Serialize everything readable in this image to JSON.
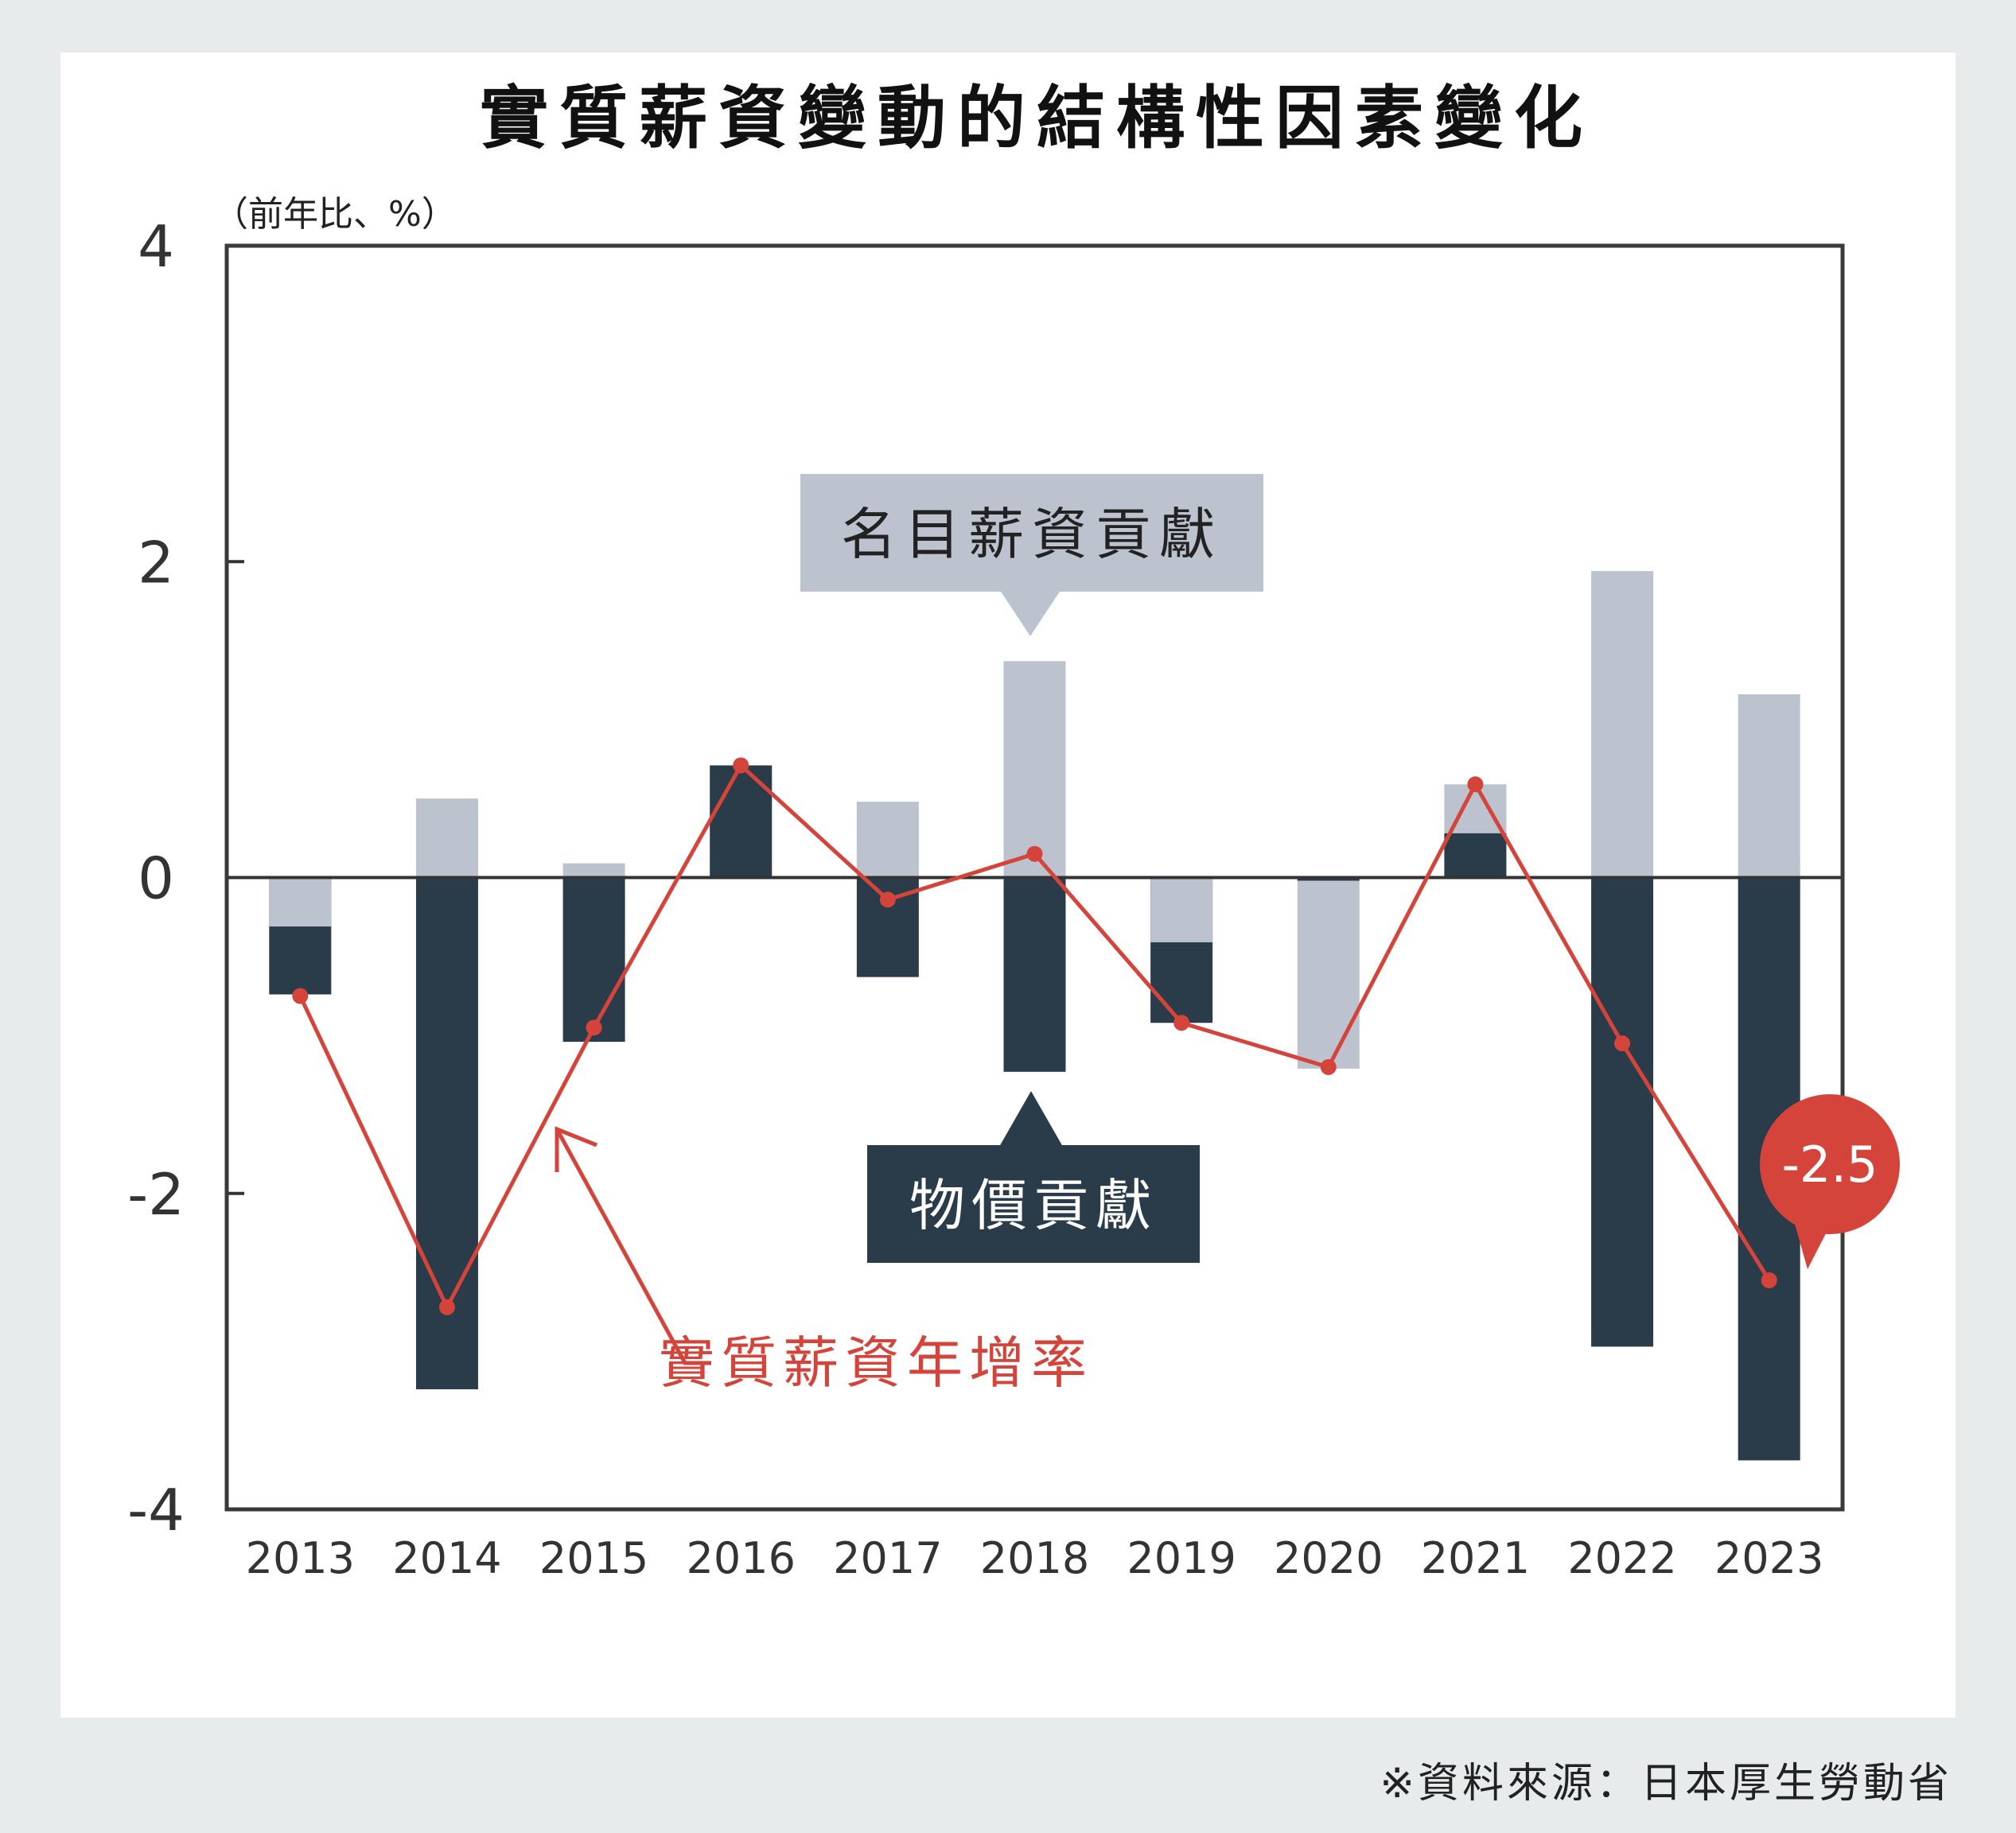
{
  "source_note": "※資料來源：日本厚生勞動省",
  "chart_data": {
    "type": "bar",
    "title": "實質薪資變動的結構性因素變化",
    "ylabel": "（前年比、%）",
    "ylim": [
      -4,
      4
    ],
    "yticks": [
      "4",
      "2",
      "0",
      "-2",
      "-4"
    ],
    "ytick_values": [
      4,
      2,
      0,
      -2,
      -4
    ],
    "categories": [
      "2013",
      "2014",
      "2015",
      "2016",
      "2017",
      "2018",
      "2019",
      "2020",
      "2021",
      "2022",
      "2023"
    ],
    "grid": false,
    "legend": "inline callouts",
    "series": [
      {
        "name": "名目薪資貢獻",
        "kind": "bar",
        "color": "#bcc3cf",
        "values": [
          -0.31,
          0.5,
          0.09,
          0.71,
          0.48,
          1.37,
          -0.41,
          -1.21,
          0.59,
          1.94,
          1.16
        ]
      },
      {
        "name": "物價貢獻",
        "kind": "bar",
        "color": "#2a3b4a",
        "values": [
          -0.74,
          -3.24,
          -1.04,
          0.71,
          -0.63,
          -1.23,
          -0.92,
          -0.02,
          0.28,
          -2.97,
          -3.69
        ]
      },
      {
        "name": "實質薪資年增率",
        "kind": "line",
        "color": "#d5443b",
        "values": [
          -0.75,
          -2.72,
          -0.95,
          0.71,
          -0.14,
          0.15,
          -0.92,
          -1.2,
          0.59,
          -1.05,
          -2.55
        ]
      }
    ],
    "annotations": {
      "nominal_label": "名目薪資貢獻",
      "price_label": "物價貢獻",
      "real_label": "實質薪資年增率",
      "highlight_value": "-2.5"
    }
  }
}
